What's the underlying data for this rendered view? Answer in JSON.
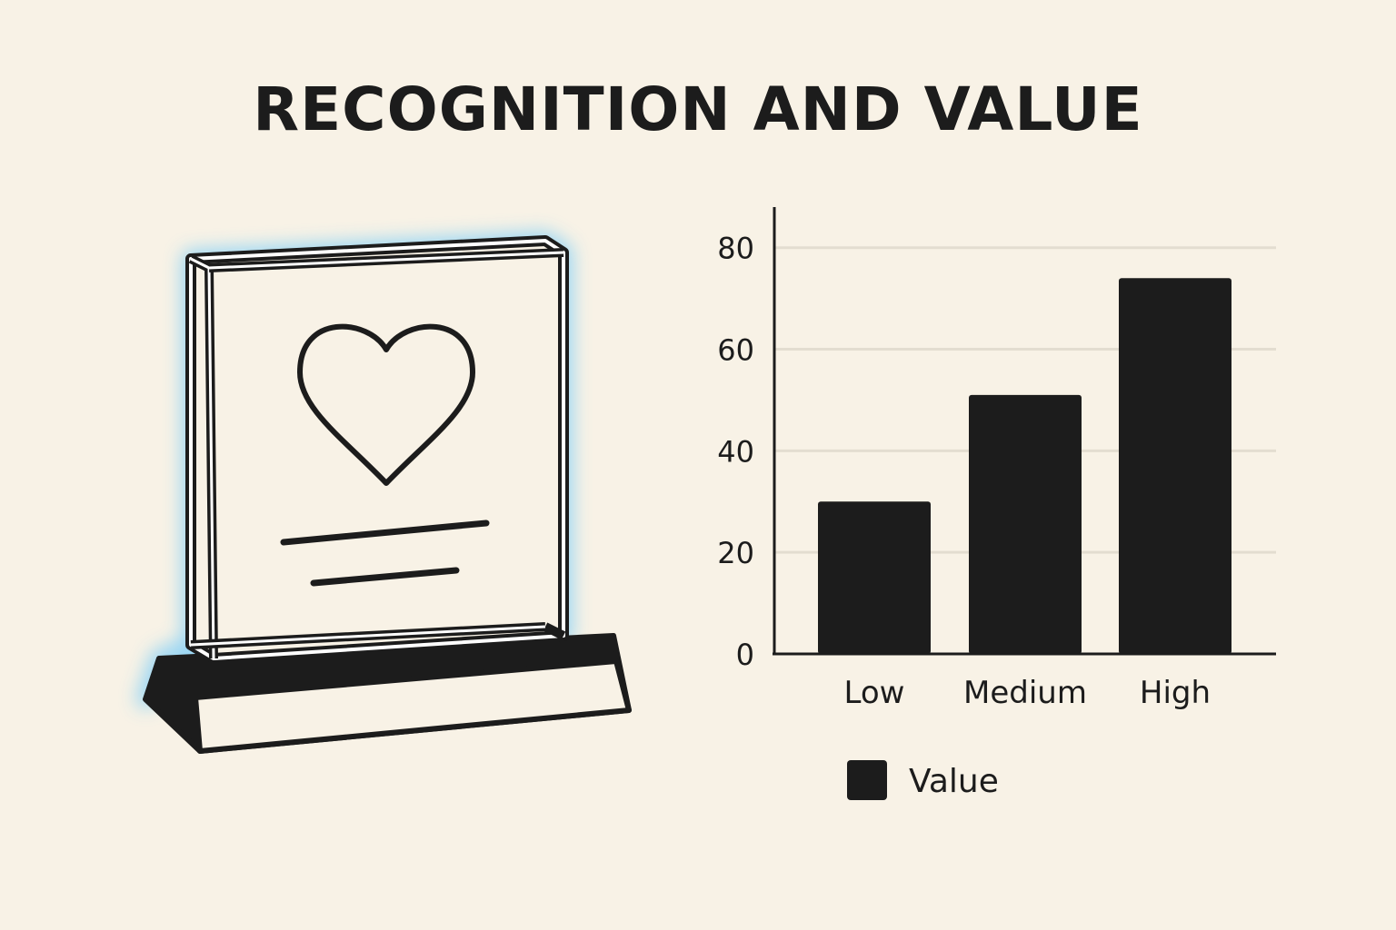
{
  "title": "RECOGNITION AND VALUE",
  "icons": {
    "award": "glass-award-plaque-icon",
    "heart": "heart-icon"
  },
  "colors": {
    "background": "#f8f2e6",
    "ink": "#1c1c1c",
    "glow": "#8fd3f5",
    "grid": "#e3ddd0"
  },
  "chart_data": {
    "type": "bar",
    "categories": [
      "Low",
      "Medium",
      "High"
    ],
    "series": [
      {
        "name": "Value",
        "values": [
          30,
          51,
          74
        ]
      }
    ],
    "yticks": [
      0,
      20,
      40,
      60,
      80
    ],
    "ylim": [
      0,
      88
    ],
    "grid": true,
    "legend": "bottom-center",
    "xlabel": "",
    "ylabel": ""
  }
}
